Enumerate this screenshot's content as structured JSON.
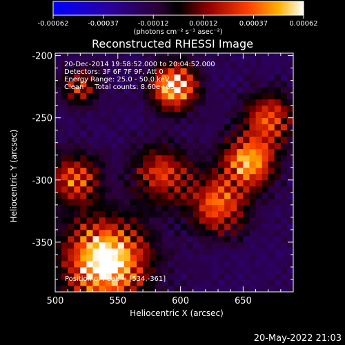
{
  "chart_data": {
    "type": "heatmap",
    "title": "Reconstructed RHESSI Image",
    "xlabel": "Heliocentric X (arcsec)",
    "ylabel": "Heliocentric Y (arcsec)",
    "xlim": [
      500,
      690
    ],
    "ylim": [
      -390,
      -198
    ],
    "xticks": [
      500,
      550,
      600,
      650
    ],
    "yticks": [
      -200,
      -250,
      -300,
      -350
    ],
    "colorbar": {
      "label": "(photons cm⁻² s⁻¹ asec⁻²)",
      "min": -0.00062,
      "max": 0.00062,
      "tick_labels": [
        "-0.00062",
        "-0.00037",
        "-0.00012",
        "0.00012",
        "0.00037",
        "0.00062"
      ]
    },
    "info_lines": [
      "20-Dec-2014 19:58:52.000 to 20:04:52.000",
      "Detectors: 3F 6F 7F 9F, Att 0",
      "Energy Range: 25.0 - 50.0 keV",
      "Clean     Total counts: 8.60e+03"
    ],
    "peak_label": "Position of Peak = [534,-361]",
    "peak": [
      534,
      -361
    ],
    "intensity_sources": [
      {
        "x": 540,
        "y": -365,
        "strength": 1.0,
        "spread": 22
      },
      {
        "x": 595,
        "y": -225,
        "strength": 0.9,
        "spread": 12
      },
      {
        "x": 655,
        "y": -285,
        "strength": 0.75,
        "spread": 14
      },
      {
        "x": 630,
        "y": -320,
        "strength": 0.6,
        "spread": 16
      },
      {
        "x": 515,
        "y": -300,
        "strength": 0.55,
        "spread": 14
      },
      {
        "x": 585,
        "y": -295,
        "strength": 0.5,
        "spread": 16
      },
      {
        "x": 670,
        "y": -250,
        "strength": 0.55,
        "spread": 14
      },
      {
        "x": 520,
        "y": -225,
        "strength": 0.45,
        "spread": 10
      }
    ]
  },
  "footer": {
    "timestamp": "20-May-2022 21:03"
  }
}
